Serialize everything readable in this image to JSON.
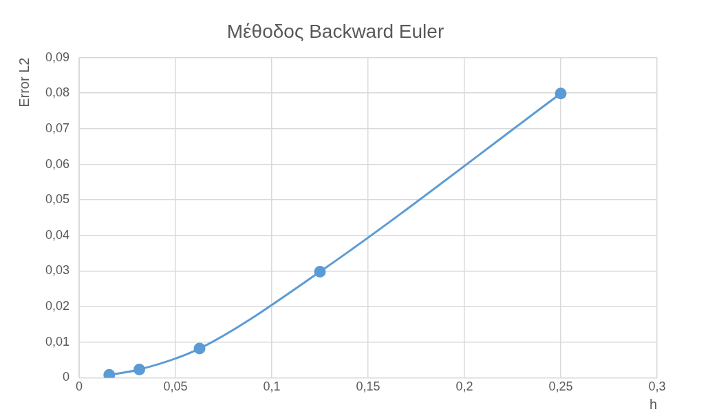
{
  "chart_data": {
    "type": "line",
    "title": "Μέθοδος Backward Euler",
    "xlabel": "h",
    "ylabel": "Error L2",
    "x": [
      0.015625,
      0.03125,
      0.0625,
      0.125,
      0.25
    ],
    "series": [
      {
        "color": "#5b9bd5",
        "values": [
          0.0008,
          0.0023,
          0.0082,
          0.0298,
          0.0799
        ]
      }
    ],
    "xlim": [
      0,
      0.3
    ],
    "xticks": [
      0,
      {
        "value": 0.05,
        "label": "0,05"
      },
      {
        "value": 0.1,
        "label": "0,1"
      },
      {
        "value": 0.15,
        "label": "0,15"
      },
      {
        "value": 0.2,
        "label": "0,2"
      },
      {
        "value": 0.25,
        "label": "0,25"
      },
      {
        "value": 0.3,
        "label": "0,3"
      }
    ],
    "ylim": [
      0,
      0.09
    ],
    "yticks": [
      0,
      {
        "value": 0.01,
        "label": "0,01"
      },
      {
        "value": 0.02,
        "label": "0,02"
      },
      {
        "value": 0.03,
        "label": "0,03"
      },
      {
        "value": 0.04,
        "label": "0,04"
      },
      {
        "value": 0.05,
        "label": "0,05"
      },
      {
        "value": 0.06,
        "label": "0,06"
      },
      {
        "value": 0.07,
        "label": "0,07"
      },
      {
        "value": 0.08,
        "label": "0,08"
      },
      {
        "value": 0.09,
        "label": "0,09"
      }
    ],
    "grid": true,
    "legend": false,
    "marker": "circle",
    "line_style": "solid"
  }
}
